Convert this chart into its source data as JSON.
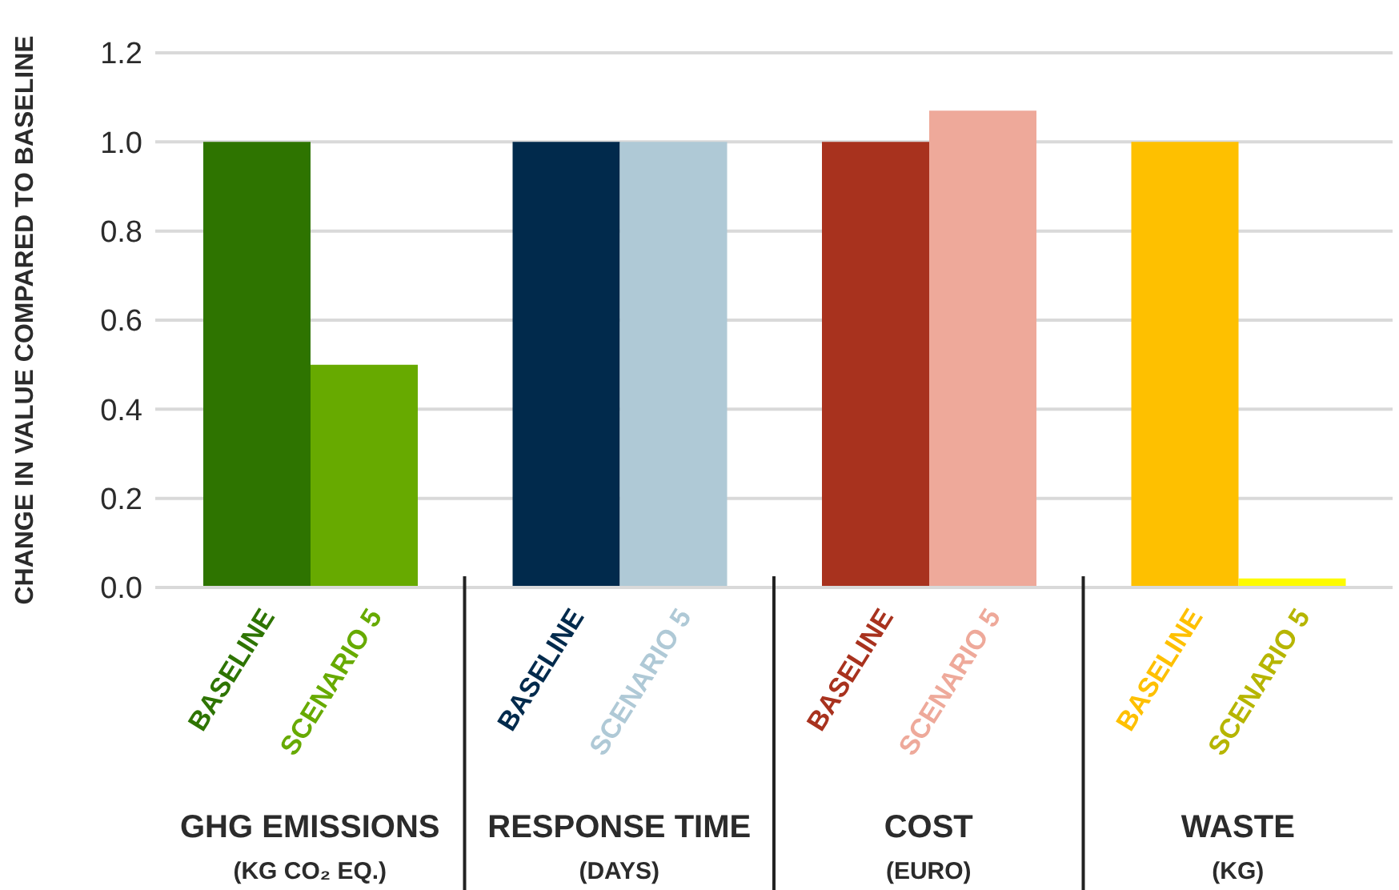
{
  "chart_data": {
    "type": "bar",
    "ylabel": "CHANGE IN VALUE COMPARED TO BASELINE",
    "categories": [
      "BASELINE",
      "SCENARIO 5",
      "BASELINE",
      "SCENARIO 5",
      "BASELINE",
      "SCENARIO 5",
      "BASELINE",
      "SCENARIO 5"
    ],
    "values": [
      1.0,
      0.5,
      1.0,
      1.0,
      1.0,
      1.07,
      1.0,
      0.02
    ],
    "colors": [
      "#2e7400",
      "#67aa00",
      "#012a4c",
      "#afc9d6",
      "#a8321e",
      "#eea99a",
      "#fec000",
      "#fdfb00"
    ],
    "ylim": [
      0,
      1.2
    ],
    "yticks": [
      {
        "value": 0,
        "label": "0.0"
      },
      {
        "value": 0.2,
        "label": "0.2"
      },
      {
        "value": 0.4,
        "label": "0.4"
      },
      {
        "value": 0.6,
        "label": "0.6"
      },
      {
        "value": 0.8,
        "label": "0.8"
      },
      {
        "value": 1,
        "label": "1.0"
      },
      {
        "value": 1.2,
        "label": "1.2"
      }
    ],
    "grid": "y",
    "annotations": [
      "GHG EMISSIONS",
      "(KG CO₂ EQ.)",
      "RESPONSE TIME",
      "(DAYS)",
      "COST",
      "(EURO)",
      "WASTE",
      "(KG)"
    ]
  }
}
